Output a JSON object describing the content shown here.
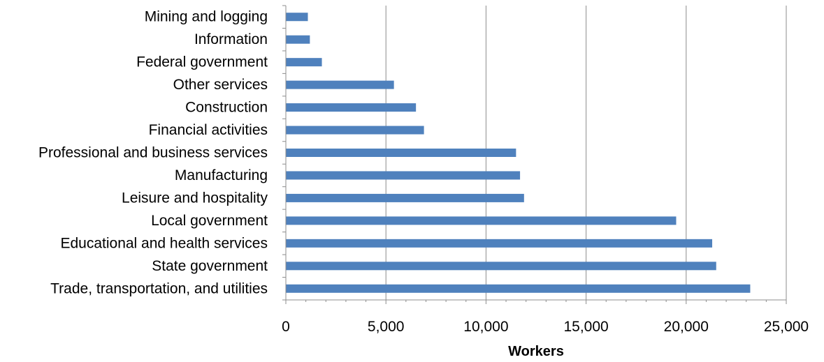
{
  "chart_data": {
    "type": "bar",
    "orientation": "horizontal",
    "categories": [
      "Mining and logging",
      "Information",
      "Federal government",
      "Other services",
      "Construction",
      "Financial activities",
      "Professional and business services",
      "Manufacturing",
      "Leisure and hospitality",
      "Local government",
      "Educational and health services",
      "State government",
      "Trade, transportation, and utilities"
    ],
    "values": [
      1100,
      1200,
      1800,
      5400,
      6500,
      6900,
      11500,
      11700,
      11900,
      19500,
      21300,
      21500,
      23200
    ],
    "xlabel": "Workers",
    "xlim": [
      0,
      25000
    ],
    "xticks": [
      0,
      5000,
      10000,
      15000,
      20000,
      25000
    ],
    "xtick_labels": [
      "0",
      "5,000",
      "10,000",
      "15,000",
      "20,000",
      "25,000"
    ],
    "grid": "vertical",
    "legend": "none",
    "bar_color": "#4F81BD"
  }
}
